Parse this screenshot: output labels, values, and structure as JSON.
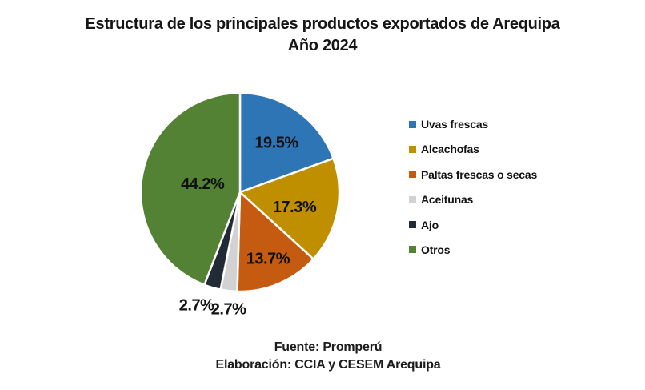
{
  "title": {
    "line1": "Estructura de los principales productos exportados de Arequipa",
    "line2": "Año 2024"
  },
  "footer": {
    "line1": "Fuente: Promperú",
    "line2": "Elaboración: CCIA y CESEM Arequipa"
  },
  "chart_data": {
    "type": "pie",
    "title": "Estructura de los principales productos exportados de Arequipa",
    "subtitle": "Año 2024",
    "legend_position": "right",
    "start_angle": "top",
    "direction": "clockwise",
    "slices": [
      {
        "label": "Uvas frescas",
        "value": 19.5,
        "display": "19.5%",
        "color": "#2E75B6"
      },
      {
        "label": "Alcachofas",
        "value": 17.3,
        "display": "17.3%",
        "color": "#BF8F00"
      },
      {
        "label": "Paltas frescas o secas",
        "value": 13.7,
        "display": "13.7%",
        "color": "#C55A11"
      },
      {
        "label": "Aceitunas",
        "value": 2.7,
        "display": "2.7%",
        "color": "#D2D2D2"
      },
      {
        "label": "Ajo",
        "value": 2.7,
        "display": "2.7%",
        "color": "#222A35"
      },
      {
        "label": "Otros",
        "value": 44.2,
        "display": "44.2%",
        "color": "#548235"
      }
    ],
    "source_line1": "Fuente: Promperú",
    "source_line2": "Elaboración: CCIA y CESEM Arequipa"
  }
}
